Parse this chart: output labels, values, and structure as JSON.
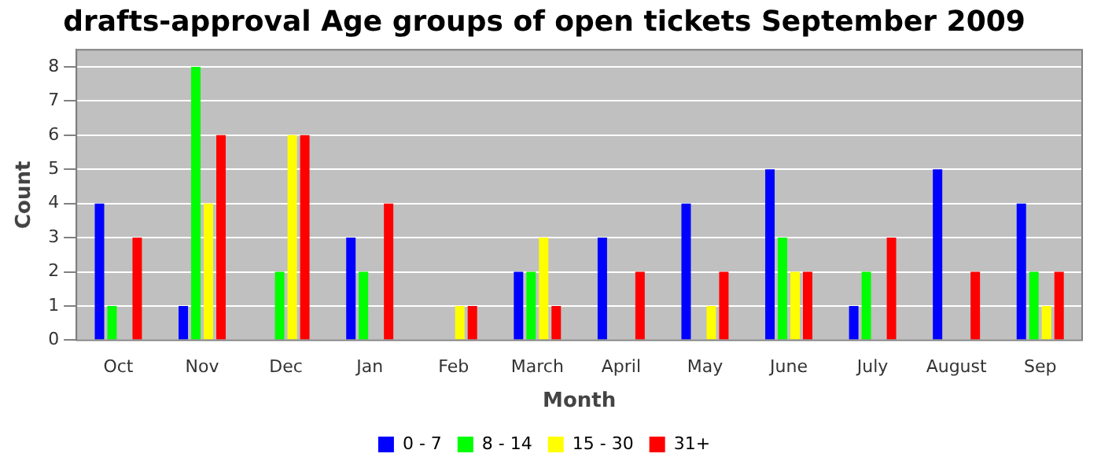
{
  "chart_data": {
    "type": "bar",
    "title": "drafts-approval Age groups of open tickets September 2009",
    "xlabel": "Month",
    "ylabel": "Count",
    "categories": [
      "Oct",
      "Nov",
      "Dec",
      "Jan",
      "Feb",
      "March",
      "April",
      "May",
      "June",
      "July",
      "August",
      "Sep"
    ],
    "series": [
      {
        "name": "0 - 7",
        "color": "#0000ff",
        "values": [
          4,
          1,
          0,
          3,
          0,
          2,
          3,
          4,
          5,
          1,
          5,
          4
        ]
      },
      {
        "name": "8 - 14",
        "color": "#00ff00",
        "values": [
          1,
          8,
          2,
          2,
          0,
          2,
          0,
          0,
          3,
          2,
          0,
          2
        ]
      },
      {
        "name": "15 - 30",
        "color": "#ffff00",
        "values": [
          0,
          4,
          6,
          0,
          1,
          3,
          0,
          1,
          2,
          0,
          0,
          1
        ]
      },
      {
        "name": "31+",
        "color": "#ff0000",
        "values": [
          3,
          6,
          6,
          4,
          1,
          1,
          2,
          2,
          2,
          3,
          2,
          2
        ]
      }
    ],
    "ylim": [
      0,
      8.5
    ],
    "yticks": [
      0,
      1,
      2,
      3,
      4,
      5,
      6,
      7,
      8
    ],
    "grid": "y",
    "legend": "bottom"
  }
}
